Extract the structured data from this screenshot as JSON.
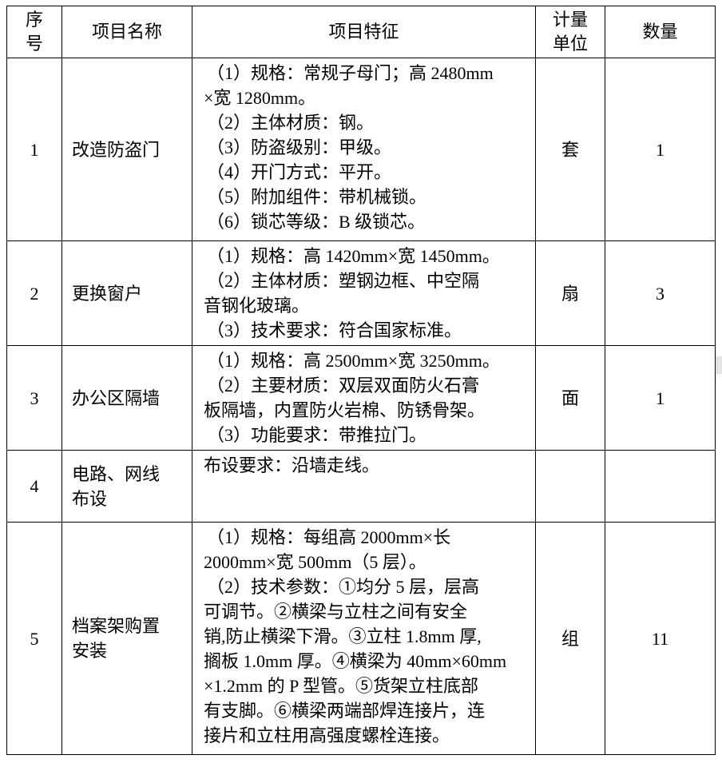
{
  "header": {
    "seq": [
      "序",
      "号"
    ],
    "name": "项目名称",
    "feature": "项目特征",
    "unit": [
      "计量",
      "单位"
    ],
    "qty": "数量"
  },
  "rows": [
    {
      "seq": "1",
      "name": [
        "改造防盗门"
      ],
      "feature": [
        "（1）规格：常规子母门；高 2480mm",
        "×宽 1280mm。",
        "（2）主体材质：钢。",
        "（3）防盗级别：甲级。",
        "（4）开门方式：平开。",
        "（5）附加组件：带机械锁。",
        "（6）锁芯等级：B 级锁芯。"
      ],
      "unit": "套",
      "qty": "1"
    },
    {
      "seq": "2",
      "name": [
        "更换窗户"
      ],
      "feature": [
        "（1）规格：高 1420mm×宽 1450mm。",
        "（2）主体材质：塑钢边框、中空隔",
        "音钢化玻璃。",
        "（3）技术要求：符合国家标准。"
      ],
      "unit": "扇",
      "qty": "3"
    },
    {
      "seq": "3",
      "name": [
        "办公区隔墙"
      ],
      "feature": [
        "（1）规格：高 2500mm×宽 3250mm。",
        "（2）主要材质：双层双面防火石膏",
        "板隔墙，内置防火岩棉、防锈骨架。",
        "（3）功能要求：带推拉门。"
      ],
      "unit": "面",
      "qty": "1"
    },
    {
      "seq": "4",
      "name": [
        "电路、网线",
        "布设"
      ],
      "feature": [
        "布设要求：沿墙走线。"
      ],
      "unit": "",
      "qty": ""
    },
    {
      "seq": "5",
      "name": [
        "档案架购置",
        "安装"
      ],
      "feature": [
        "（1）规格：每组高 2000mm×长",
        "2000mm×宽 500mm（5 层）。",
        "（2）技术参数：①均分 5 层，层高",
        "可调节。②横梁与立柱之间有安全",
        "销,防止横梁下滑。③立柱 1.8mm 厚,",
        "搁板 1.0mm 厚。④横梁为 40mm×60mm",
        "×1.2mm 的 P 型管。⑤货架立柱底部",
        "有支脚。⑥横梁两端部焊连接片，连",
        "接片和立柱用高强度螺栓连接。"
      ],
      "unit": "组",
      "qty": "11"
    }
  ]
}
